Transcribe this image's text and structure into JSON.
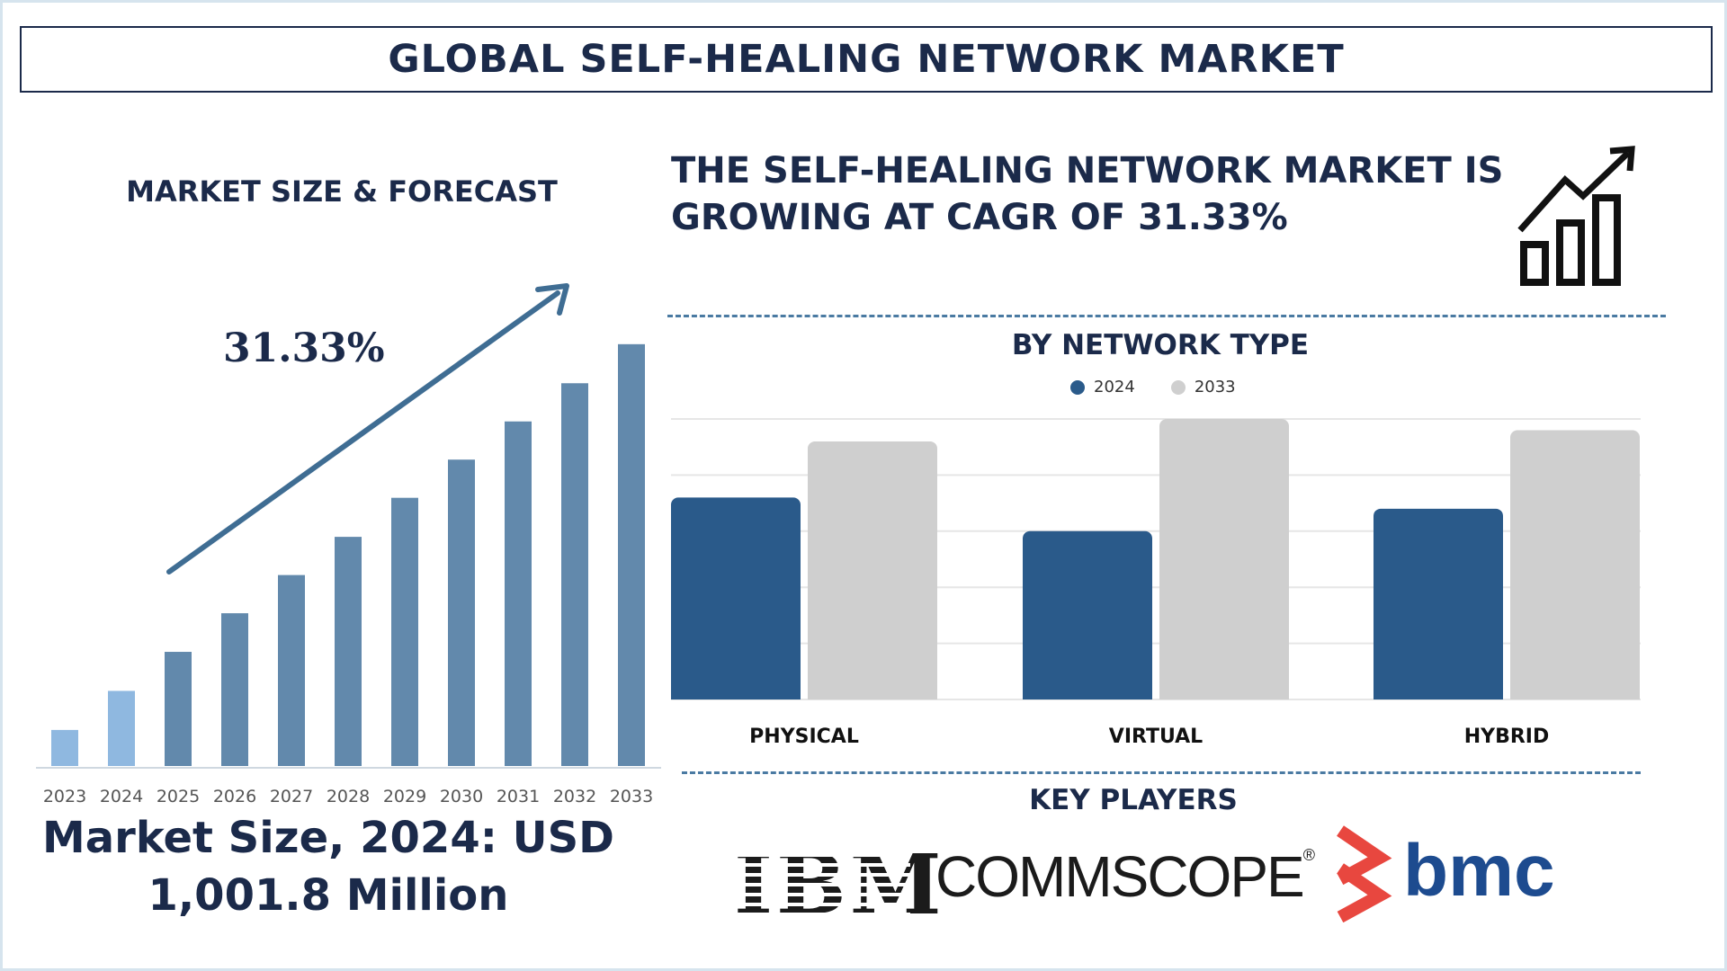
{
  "header": {
    "title": "GLOBAL SELF-HEALING NETWORK MARKET"
  },
  "left_panel": {
    "title": "MARKET SIZE & FORECAST",
    "cagr_label": "31.33%",
    "market_size_line1": "Market Size, 2024: USD",
    "market_size_line2": "1,001.8 Million"
  },
  "right_panel": {
    "headline_line1": "THE SELF-HEALING NETWORK MARKET IS",
    "headline_line2": "GROWING AT CAGR OF 31.33%",
    "growth_icon": "growth-chart-icon",
    "network_type_title": "BY NETWORK TYPE",
    "key_players_title": "KEY PLAYERS",
    "logos": [
      "IBM",
      "COMMSCOPE",
      "bmc"
    ]
  },
  "colors": {
    "navy": "#1b2a4a",
    "bar_light": "#8fb8e0",
    "bar_mid": "#6289ac",
    "series_2024": "#2a5a8a",
    "series_2033": "#cfcfcf",
    "arrow": "#3f6d93",
    "bmc_red": "#e8473f",
    "bmc_blue": "#1d4b8f"
  },
  "chart_data": [
    {
      "type": "bar",
      "title": "MARKET SIZE & FORECAST",
      "categories": [
        "2023",
        "2024",
        "2025",
        "2026",
        "2027",
        "2028",
        "2029",
        "2030",
        "2031",
        "2032",
        "2033"
      ],
      "values": [
        0.85,
        1.77,
        2.69,
        3.6,
        4.5,
        5.4,
        6.32,
        7.22,
        8.12,
        9.02,
        9.94
      ],
      "ylim": [
        0,
        10
      ],
      "grid": false,
      "annotation": "31.33%"
    },
    {
      "type": "bar",
      "title": "BY NETWORK TYPE",
      "categories": [
        "PHYSICAL",
        "VIRTUAL",
        "HYBRID"
      ],
      "series": [
        {
          "name": "2024",
          "values": [
            3.6,
            3.0,
            3.4
          ]
        },
        {
          "name": "2033",
          "values": [
            4.6,
            5.0,
            4.8
          ]
        }
      ],
      "ylim": [
        0,
        5
      ],
      "grid": true,
      "legend": "top-center"
    }
  ]
}
